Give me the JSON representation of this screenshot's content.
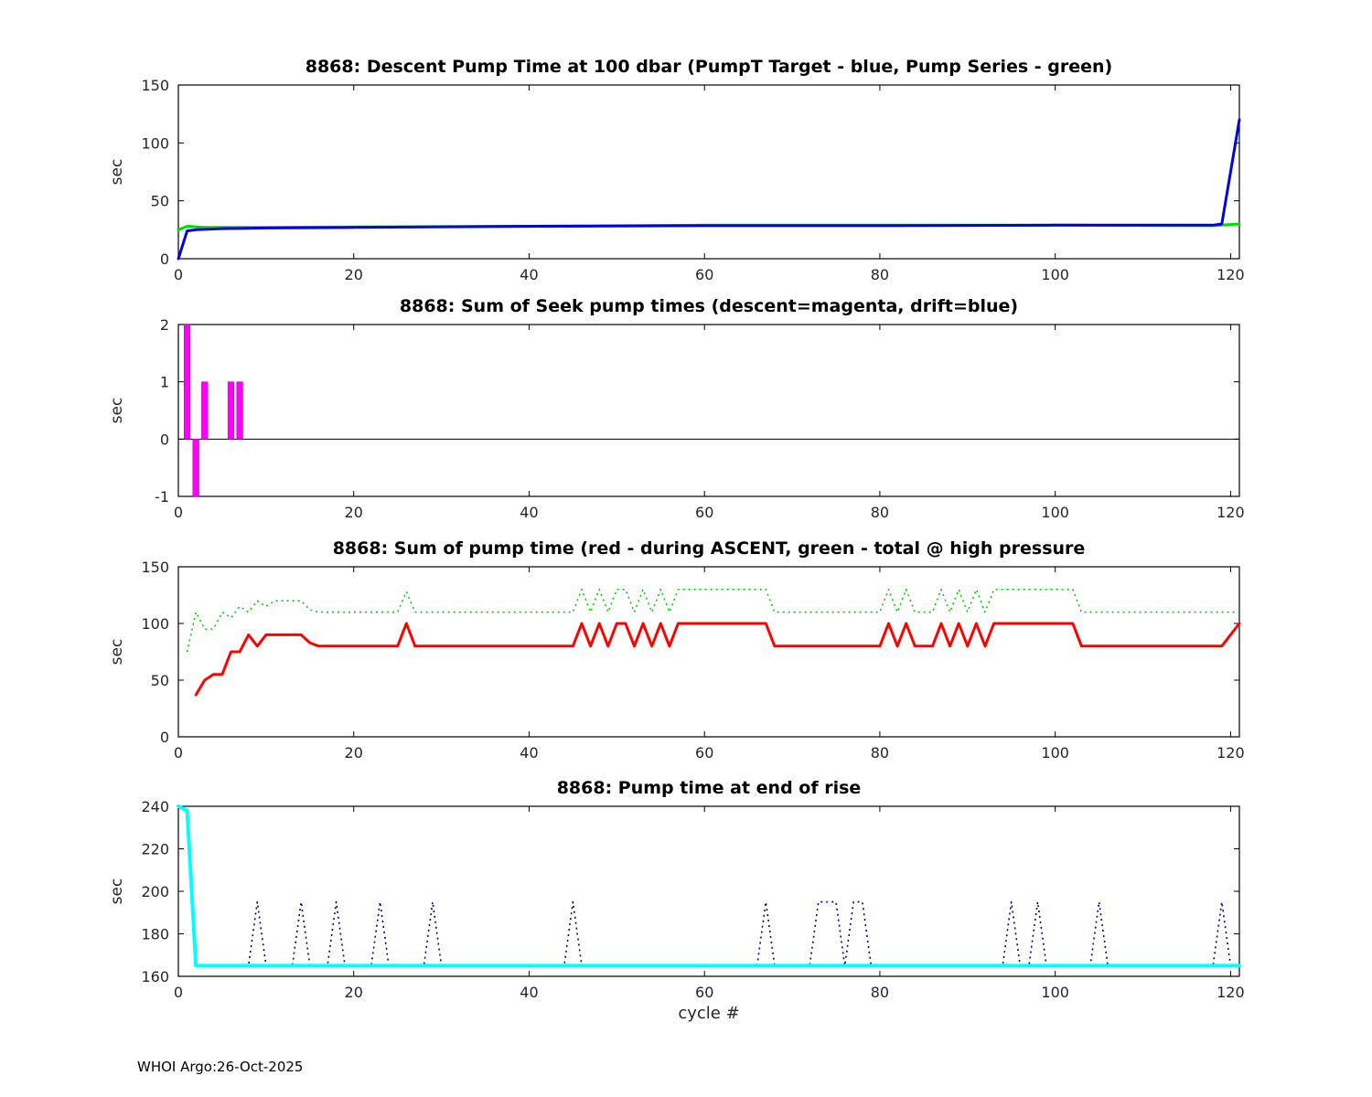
{
  "figure": {
    "footer": "WHOI Argo:26-Oct-2025",
    "xlabel": "cycle #"
  },
  "chart_data": [
    {
      "type": "line",
      "title": "8868: Descent Pump Time at 100 dbar (PumpT Target - blue, Pump Series - green)",
      "ylabel": "sec",
      "xlim": [
        0,
        121
      ],
      "ylim": [
        0,
        150
      ],
      "xticks": [
        0,
        20,
        40,
        60,
        80,
        100,
        120
      ],
      "yticks": [
        0,
        50,
        100,
        150
      ],
      "series": [
        {
          "name": "Pump Series",
          "color": "#00dd00",
          "width": 3,
          "style": "solid",
          "points": [
            [
              0,
              25
            ],
            [
              1,
              28
            ],
            [
              3,
              27
            ],
            [
              10,
              27
            ],
            [
              20,
              27.5
            ],
            [
              40,
              28
            ],
            [
              60,
              29
            ],
            [
              80,
              29
            ],
            [
              100,
              29
            ],
            [
              118,
              28.5
            ],
            [
              121,
              30
            ]
          ]
        },
        {
          "name": "PumpT Target",
          "color": "#0000e0",
          "width": 3,
          "style": "solid",
          "points": [
            [
              0,
              0
            ],
            [
              1,
              24
            ],
            [
              2,
              25
            ],
            [
              5,
              26
            ],
            [
              10,
              26.5
            ],
            [
              20,
              27
            ],
            [
              40,
              28
            ],
            [
              60,
              28.5
            ],
            [
              80,
              28.5
            ],
            [
              100,
              29
            ],
            [
              118,
              29
            ],
            [
              119,
              30
            ],
            [
              121,
              120
            ]
          ]
        }
      ]
    },
    {
      "type": "bar",
      "title": "8868: Sum of Seek pump times (descent=magenta, drift=blue)",
      "ylabel": "sec",
      "xlim": [
        0,
        121
      ],
      "ylim": [
        -1,
        2
      ],
      "xticks": [
        0,
        20,
        40,
        60,
        80,
        100,
        120
      ],
      "yticks": [
        -1,
        0,
        1,
        2
      ],
      "bar_width": 0.7,
      "bar_color": "#ff00ff",
      "bars": [
        {
          "x": 1,
          "value": 2,
          "series": "descent"
        },
        {
          "x": 2,
          "value": -1,
          "series": "descent"
        },
        {
          "x": 3,
          "value": 1,
          "series": "descent"
        },
        {
          "x": 6,
          "value": 1,
          "series": "descent"
        },
        {
          "x": 7,
          "value": 1,
          "series": "descent"
        }
      ],
      "series": []
    },
    {
      "type": "line",
      "title": "8868: Sum of pump time (red - during ASCENT, green - total @ high pressure",
      "ylabel": "sec",
      "xlim": [
        0,
        121
      ],
      "ylim": [
        0,
        150
      ],
      "xticks": [
        0,
        20,
        40,
        60,
        80,
        100,
        120
      ],
      "yticks": [
        0,
        50,
        100,
        150
      ],
      "series": [
        {
          "name": "total @ high pressure",
          "color": "#00cc00",
          "width": 1.6,
          "style": "dotted",
          "points": [
            [
              1,
              75
            ],
            [
              2,
              110
            ],
            [
              3,
              95
            ],
            [
              4,
              95
            ],
            [
              5,
              110
            ],
            [
              6,
              105
            ],
            [
              7,
              115
            ],
            [
              8,
              110
            ],
            [
              9,
              120
            ],
            [
              10,
              115
            ],
            [
              11,
              120
            ],
            [
              14,
              120
            ],
            [
              15,
              112
            ],
            [
              16,
              110
            ],
            [
              25,
              110
            ],
            [
              26,
              128
            ],
            [
              27,
              110
            ],
            [
              45,
              110
            ],
            [
              46,
              130
            ],
            [
              47,
              110
            ],
            [
              48,
              130
            ],
            [
              49,
              110
            ],
            [
              50,
              130
            ],
            [
              51,
              130
            ],
            [
              52,
              110
            ],
            [
              53,
              130
            ],
            [
              54,
              110
            ],
            [
              55,
              130
            ],
            [
              56,
              110
            ],
            [
              57,
              130
            ],
            [
              59,
              130
            ],
            [
              67,
              130
            ],
            [
              68,
              110
            ],
            [
              80,
              110
            ],
            [
              81,
              130
            ],
            [
              82,
              110
            ],
            [
              83,
              130
            ],
            [
              84,
              110
            ],
            [
              86,
              110
            ],
            [
              87,
              130
            ],
            [
              88,
              110
            ],
            [
              89,
              130
            ],
            [
              90,
              110
            ],
            [
              91,
              130
            ],
            [
              92,
              110
            ],
            [
              93,
              130
            ],
            [
              95,
              130
            ],
            [
              102,
              130
            ],
            [
              103,
              110
            ],
            [
              119,
              110
            ],
            [
              121,
              110
            ]
          ]
        },
        {
          "name": "during ASCENT",
          "color": "#ff0000",
          "width": 3,
          "style": "solid",
          "points": [
            [
              2,
              37
            ],
            [
              3,
              50
            ],
            [
              4,
              55
            ],
            [
              5,
              55
            ],
            [
              6,
              75
            ],
            [
              7,
              75
            ],
            [
              8,
              90
            ],
            [
              9,
              80
            ],
            [
              10,
              90
            ],
            [
              14,
              90
            ],
            [
              15,
              83
            ],
            [
              16,
              80
            ],
            [
              25,
              80
            ],
            [
              26,
              100
            ],
            [
              27,
              80
            ],
            [
              45,
              80
            ],
            [
              46,
              100
            ],
            [
              47,
              80
            ],
            [
              48,
              100
            ],
            [
              49,
              80
            ],
            [
              50,
              100
            ],
            [
              51,
              100
            ],
            [
              52,
              80
            ],
            [
              53,
              100
            ],
            [
              54,
              80
            ],
            [
              55,
              100
            ],
            [
              56,
              80
            ],
            [
              57,
              100
            ],
            [
              59,
              100
            ],
            [
              67,
              100
            ],
            [
              68,
              80
            ],
            [
              80,
              80
            ],
            [
              81,
              100
            ],
            [
              82,
              80
            ],
            [
              83,
              100
            ],
            [
              84,
              80
            ],
            [
              86,
              80
            ],
            [
              87,
              100
            ],
            [
              88,
              80
            ],
            [
              89,
              100
            ],
            [
              90,
              80
            ],
            [
              91,
              100
            ],
            [
              92,
              80
            ],
            [
              93,
              100
            ],
            [
              95,
              100
            ],
            [
              102,
              100
            ],
            [
              103,
              80
            ],
            [
              119,
              80
            ],
            [
              121,
              100
            ]
          ]
        }
      ]
    },
    {
      "type": "line",
      "title": "8868: Pump time at end of rise",
      "ylabel": "sec",
      "xlim": [
        0,
        121
      ],
      "ylim": [
        160,
        240
      ],
      "xticks": [
        0,
        20,
        40,
        60,
        80,
        100,
        120
      ],
      "yticks": [
        160,
        180,
        200,
        220,
        240
      ],
      "series": [
        {
          "name": "pump time spikes",
          "color": "#00008b",
          "width": 1.6,
          "style": "dotted",
          "points": [
            [
              2,
              165
            ],
            [
              8,
              165
            ],
            [
              9,
              195
            ],
            [
              10,
              165
            ],
            [
              13,
              165
            ],
            [
              14,
              195
            ],
            [
              15,
              165
            ],
            [
              17,
              165
            ],
            [
              18,
              195
            ],
            [
              19,
              165
            ],
            [
              22,
              165
            ],
            [
              23,
              195
            ],
            [
              24,
              165
            ],
            [
              28,
              165
            ],
            [
              29,
              195
            ],
            [
              30,
              165
            ],
            [
              44,
              165
            ],
            [
              45,
              195
            ],
            [
              46,
              165
            ],
            [
              66,
              165
            ],
            [
              67,
              195
            ],
            [
              68,
              165
            ],
            [
              72,
              165
            ],
            [
              73,
              195
            ],
            [
              75,
              195
            ],
            [
              76,
              165
            ],
            [
              77,
              195
            ],
            [
              78,
              195
            ],
            [
              79,
              165
            ],
            [
              94,
              165
            ],
            [
              95,
              195
            ],
            [
              96,
              165
            ],
            [
              97,
              165
            ],
            [
              98,
              195
            ],
            [
              99,
              165
            ],
            [
              104,
              165
            ],
            [
              105,
              195
            ],
            [
              106,
              165
            ],
            [
              118,
              165
            ],
            [
              119,
              195
            ],
            [
              120,
              165
            ]
          ]
        },
        {
          "name": "pump time at end of rise",
          "color": "#00ffff",
          "width": 4,
          "style": "solid",
          "points": [
            [
              0,
              240
            ],
            [
              1,
              238
            ],
            [
              2,
              165
            ],
            [
              121,
              165
            ]
          ]
        }
      ]
    }
  ]
}
